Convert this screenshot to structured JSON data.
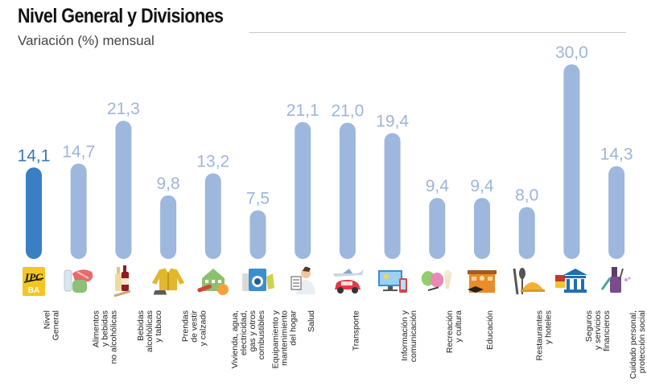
{
  "chart_data": {
    "type": "bar",
    "title": "Nivel General y Divisiones",
    "subtitle": "Variación (%) mensual",
    "xlabel": "",
    "ylabel": "",
    "ylim": [
      0,
      30
    ],
    "grid": false,
    "categories": [
      "Nivel\nGeneral",
      "Alimentos\ny bebidas\nno alcohólicas",
      "Bebidas\nalcohólicas\ny tabaco",
      "Prendas\nde vestir\ny calzado",
      "Vivienda, agua,\nelectricidad,\ngas y otros\ncombustibles",
      "Equipamiento y\nmantenimiento\ndel hogar",
      "Salud",
      "Transporte",
      "Información y\ncomunicación",
      "Recreación\ny cultura",
      "Educación",
      "Restaurantes\ny hoteles",
      "Seguros\ny servicios\nfinancieros",
      "Cuidado personal,\nprotección social\ny otros productos"
    ],
    "values": [
      14.1,
      14.7,
      21.3,
      9.8,
      13.2,
      7.5,
      21.1,
      21.0,
      19.4,
      9.4,
      9.4,
      8.0,
      30.0,
      14.3
    ],
    "value_labels": [
      "14,1",
      "14,7",
      "21,3",
      "9,8",
      "13,2",
      "7,5",
      "21,1",
      "21,0",
      "19,4",
      "9,4",
      "9,4",
      "8,0",
      "30,0",
      "14,3"
    ],
    "highlight_index": 0,
    "icons": [
      "ipc-ba-logo-icon",
      "food-icon",
      "wine-bottles-icon",
      "jacket-shoe-icon",
      "house-icon",
      "washing-machine-icon",
      "doctor-icon",
      "plane-car-icon",
      "computer-phone-icon",
      "theater-masks-icon",
      "school-icon",
      "restaurant-cloche-icon",
      "bank-icon",
      "personal-care-icon"
    ],
    "colors": {
      "highlight": "#3a7fc4",
      "bar": "#9db7dd",
      "highlight_label": "#3a78b5",
      "label": "#9db5d9"
    }
  },
  "logo_text": {
    "top": "IPC",
    "bottom": "BA"
  }
}
